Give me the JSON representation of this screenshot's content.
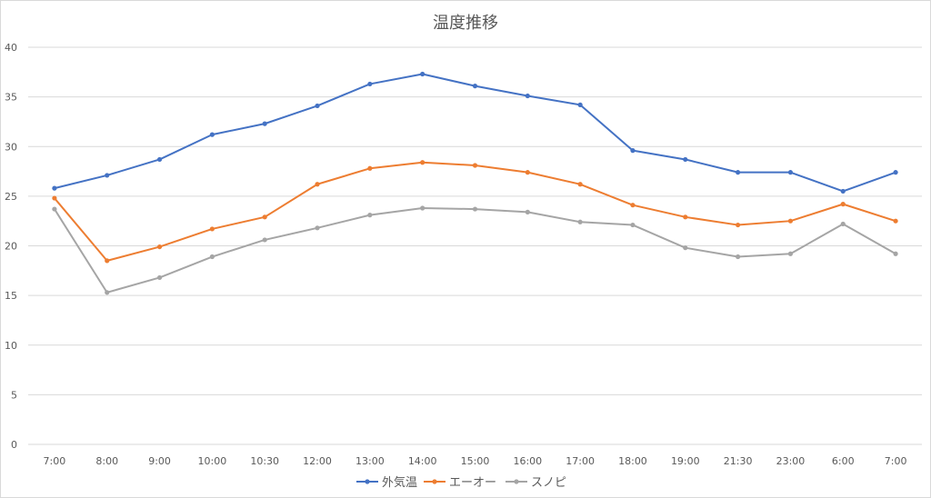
{
  "chart_data": {
    "type": "line",
    "title": "温度推移",
    "categories": [
      "7:00",
      "8:00",
      "9:00",
      "10:00",
      "10:30",
      "12:00",
      "13:00",
      "14:00",
      "15:00",
      "16:00",
      "17:00",
      "18:00",
      "19:00",
      "21:30",
      "23:00",
      "6:00",
      "7:00"
    ],
    "ylim": [
      0,
      40
    ],
    "yticks": [
      0,
      5,
      10,
      15,
      20,
      25,
      30,
      35,
      40
    ],
    "grid": true,
    "legend_position": "bottom",
    "series": [
      {
        "name": "外気温",
        "color": "#4472c4",
        "values": [
          25.8,
          27.1,
          28.7,
          31.2,
          32.3,
          34.1,
          36.3,
          37.3,
          36.1,
          35.1,
          34.2,
          29.6,
          28.7,
          27.4,
          27.4,
          25.5,
          27.4
        ]
      },
      {
        "name": "エーオー",
        "color": "#ed7d31",
        "values": [
          24.8,
          18.5,
          19.9,
          21.7,
          22.9,
          26.2,
          27.8,
          28.4,
          28.1,
          27.4,
          26.2,
          24.1,
          22.9,
          22.1,
          22.5,
          24.2,
          22.5
        ]
      },
      {
        "name": "スノピ",
        "color": "#a5a5a5",
        "values": [
          23.7,
          15.3,
          16.8,
          18.9,
          20.6,
          21.8,
          23.1,
          23.8,
          23.7,
          23.4,
          22.4,
          22.1,
          19.8,
          18.9,
          19.2,
          22.2,
          19.2
        ]
      }
    ]
  }
}
